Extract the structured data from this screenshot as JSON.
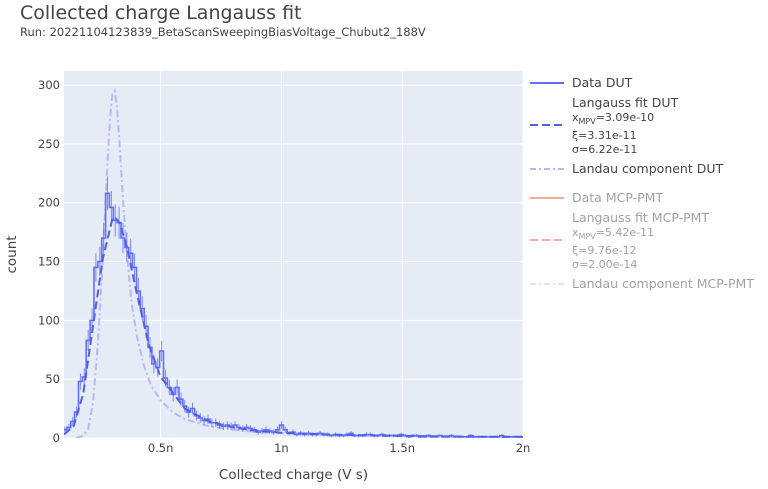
{
  "title": "Collected charge Langauss fit",
  "subtitle": "Run: 20221104123839_BetaScanSweepingBiasVoltage_Chubut2_188V",
  "legend": {
    "dut": {
      "data": "Data DUT",
      "fit": "Langauss fit DUT",
      "fit_xmpv": "=3.09e-10",
      "fit_xi": "ξ=3.31e-11",
      "fit_sigma": "σ=6.22e-11",
      "landau": "Landau component DUT"
    },
    "mcp": {
      "data": "Data MCP-PMT",
      "fit": "Langauss fit MCP-PMT",
      "fit_xmpv": "=5.42e-11",
      "fit_xi": "ξ=9.76e-12",
      "fit_sigma": "σ=2.00e-14",
      "landau": "Landau component MCP-PMT"
    },
    "xmpv_sym": "x",
    "xmpv_sub": "MPV"
  },
  "colors": {
    "data_dut": "#636efa",
    "fit_dut": "#5060e0",
    "landau_dut": "#b8b8f5",
    "data_mcp": "#ef553b",
    "plot_bg": "#e5ecf6"
  },
  "chart_data": {
    "type": "line",
    "xlabel": "Collected charge (V s)",
    "ylabel": "count",
    "xlim": [
      1e-10,
      2e-09
    ],
    "ylim": [
      0,
      312
    ],
    "xticks": [
      5e-10,
      1e-09,
      1.5e-09,
      2e-09
    ],
    "xtick_labels": [
      "0.5n",
      "1n",
      "1.5n",
      "2n"
    ],
    "yticks": [
      0,
      50,
      100,
      150,
      200,
      250,
      300
    ],
    "ytick_labels": [
      "0",
      "50",
      "100",
      "150",
      "200",
      "250",
      "300"
    ],
    "grid": true,
    "legend_position": "right",
    "series": [
      {
        "name": "Data DUT",
        "style": "step",
        "bin_width": 1.6e-11,
        "x": [
          1.04e-10,
          1.2e-10,
          1.36e-10,
          1.52e-10,
          1.68e-10,
          1.84e-10,
          2e-10,
          2.16e-10,
          2.32e-10,
          2.48e-10,
          2.64e-10,
          2.8e-10,
          2.96e-10,
          3.12e-10,
          3.28e-10,
          3.44e-10,
          3.6e-10,
          3.76e-10,
          3.92e-10,
          4.08e-10,
          4.24e-10,
          4.4e-10,
          4.56e-10,
          4.72e-10,
          4.88e-10,
          5.04e-10,
          5.2e-10,
          5.36e-10,
          5.52e-10,
          5.68e-10,
          5.84e-10,
          6e-10,
          6.16e-10,
          6.32e-10,
          6.48e-10,
          6.64e-10,
          6.8e-10,
          6.96e-10,
          7.12e-10,
          7.28e-10,
          7.44e-10,
          7.6e-10,
          7.76e-10,
          7.92e-10,
          8.08e-10,
          8.24e-10,
          8.4e-10,
          8.56e-10,
          8.72e-10,
          8.88e-10,
          9.04e-10,
          9.2e-10,
          9.36e-10,
          9.52e-10,
          9.68e-10,
          9.84e-10,
          1e-09,
          1.016e-09,
          1.032e-09,
          1.048e-09,
          1.064e-09,
          1.08e-09,
          1.096e-09,
          1.112e-09,
          1.128e-09,
          1.144e-09,
          1.16e-09,
          1.176e-09,
          1.192e-09,
          1.208e-09,
          1.224e-09,
          1.24e-09,
          1.256e-09,
          1.272e-09,
          1.288e-09,
          1.304e-09,
          1.32e-09,
          1.336e-09,
          1.352e-09,
          1.368e-09,
          1.384e-09,
          1.4e-09,
          1.416e-09,
          1.432e-09,
          1.448e-09,
          1.464e-09,
          1.48e-09,
          1.496e-09,
          1.512e-09,
          1.528e-09,
          1.544e-09,
          1.56e-09,
          1.576e-09,
          1.592e-09,
          1.608e-09,
          1.624e-09,
          1.64e-09,
          1.656e-09,
          1.672e-09,
          1.688e-09,
          1.704e-09,
          1.72e-09,
          1.736e-09,
          1.752e-09,
          1.768e-09,
          1.784e-09,
          1.8e-09,
          1.816e-09,
          1.832e-09,
          1.848e-09,
          1.864e-09,
          1.88e-09,
          1.896e-09,
          1.912e-09,
          1.928e-09,
          1.944e-09,
          1.96e-09,
          1.976e-09,
          1.992e-09
        ],
        "y": [
          7,
          9,
          14,
          22,
          48,
          52,
          83,
          100,
          145,
          150,
          170,
          208,
          196,
          185,
          183,
          170,
          162,
          157,
          145,
          125,
          110,
          95,
          77,
          63,
          60,
          74,
          51,
          43,
          37,
          43,
          33,
          27,
          22,
          25,
          19,
          17,
          15,
          16,
          13,
          13,
          11,
          10,
          11,
          10,
          11,
          9,
          8,
          9,
          8,
          7,
          5,
          6,
          7,
          6,
          5,
          7,
          11,
          7,
          4,
          5,
          3,
          4,
          3,
          4,
          3,
          3,
          4,
          3,
          3,
          2,
          3,
          2,
          2,
          3,
          4,
          2,
          2,
          2,
          3,
          3,
          2,
          2,
          3,
          2,
          2,
          2,
          2,
          3,
          2,
          1,
          2,
          2,
          1,
          1,
          2,
          1,
          1,
          2,
          1,
          1,
          2,
          1,
          1,
          1,
          1,
          2,
          1,
          1,
          1,
          1,
          1,
          1,
          1,
          2,
          1,
          1,
          1,
          1,
          1
        ],
        "error": [
          2.6,
          3.0,
          3.7,
          4.7,
          6.9,
          7.2,
          9.1,
          10.0,
          12.0,
          12.2,
          13.0,
          14.4,
          14.0,
          13.6,
          13.5,
          13.0,
          12.7,
          12.5,
          12.0,
          11.2,
          10.5,
          9.7,
          8.8,
          7.9,
          7.7,
          8.6,
          7.1,
          6.6,
          6.1,
          6.6,
          5.7,
          5.2,
          4.7,
          5.0,
          4.4,
          4.1,
          3.9,
          4.0,
          3.6,
          3.6,
          3.3,
          3.2,
          3.3,
          3.2,
          3.3,
          3.0,
          2.8,
          3.0,
          2.8,
          2.6,
          2.2,
          2.4,
          2.6,
          2.4,
          2.2,
          2.6,
          3.3,
          2.6,
          2.0,
          2.2,
          1.7,
          2.0,
          1.7,
          2.0,
          1.7,
          1.7,
          2.0,
          1.7,
          1.7,
          1.4,
          1.7,
          1.4,
          1.4,
          1.7,
          2.0,
          1.4,
          1.4,
          1.4,
          1.7,
          1.7,
          1.4,
          1.4,
          1.7,
          1.4,
          1.4,
          1.4,
          1.4,
          1.7,
          1.4,
          1.0,
          1.4,
          1.4,
          1.0,
          1.0,
          1.4,
          1.0,
          1.0,
          1.4,
          1.0,
          1.0,
          1.4,
          1.0,
          1.0,
          1.0,
          1.0,
          1.4,
          1.0,
          1.0,
          1.0,
          1.0,
          1.0,
          1.0,
          1.0,
          1.4,
          1.0,
          1.0,
          1.0,
          1.0,
          1.0
        ]
      },
      {
        "name": "Langauss fit DUT",
        "style": "dash",
        "x": [
          1e-10,
          1.4e-10,
          1.8e-10,
          2.2e-10,
          2.6e-10,
          3e-10,
          3.09e-10,
          3.3e-10,
          3.6e-10,
          4e-10,
          4.5e-10,
          5e-10,
          6e-10,
          7e-10,
          8e-10,
          9e-10,
          1e-09,
          1.2e-09,
          1.4e-09,
          1.6e-09,
          1.8e-09,
          2e-09
        ],
        "y": [
          3,
          10,
          38,
          95,
          152,
          186,
          188,
          183,
          163,
          124,
          80,
          52,
          25,
          14,
          9,
          6,
          4.5,
          3,
          2,
          1.5,
          1,
          1
        ]
      },
      {
        "name": "Landau component DUT",
        "style": "dashdot",
        "x": [
          1.5e-10,
          1.8e-10,
          2e-10,
          2.2e-10,
          2.4e-10,
          2.6e-10,
          2.75e-10,
          2.9e-10,
          3e-10,
          3.1e-10,
          3.2e-10,
          3.3e-10,
          3.45e-10,
          3.6e-10,
          3.8e-10,
          4e-10,
          4.3e-10,
          4.6e-10,
          5e-10,
          5.5e-10,
          6e-10,
          7e-10,
          8e-10,
          9e-10,
          1e-09,
          1.2e-09,
          1.4e-09,
          1.6e-09,
          1.8e-09,
          2e-09
        ],
        "y": [
          0,
          2,
          8,
          30,
          80,
          150,
          215,
          270,
          292,
          295,
          280,
          250,
          200,
          158,
          115,
          88,
          62,
          45,
          32,
          22,
          16,
          10,
          7,
          5,
          4,
          2.5,
          2,
          1.5,
          1,
          0.8
        ]
      }
    ]
  }
}
